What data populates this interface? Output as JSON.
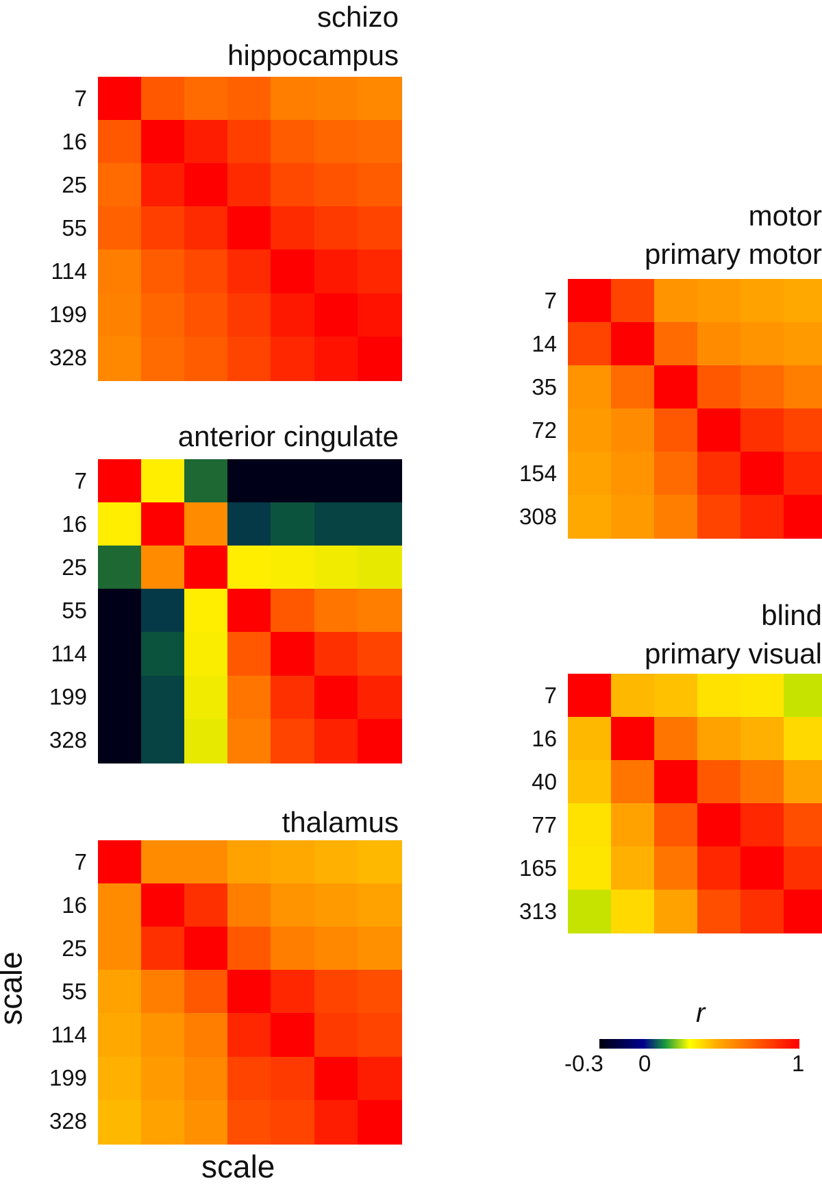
{
  "chart_data": [
    {
      "type": "heatmap",
      "title": "schizo\nhippocampus",
      "tick_labels": [
        "7",
        "16",
        "25",
        "55",
        "114",
        "199",
        "328"
      ],
      "values": [
        [
          1.0,
          0.82,
          0.78,
          0.8,
          0.74,
          0.73,
          0.71
        ],
        [
          0.82,
          1.0,
          0.94,
          0.87,
          0.81,
          0.79,
          0.78
        ],
        [
          0.78,
          0.94,
          1.0,
          0.91,
          0.85,
          0.83,
          0.81
        ],
        [
          0.8,
          0.87,
          0.91,
          1.0,
          0.91,
          0.88,
          0.86
        ],
        [
          0.74,
          0.81,
          0.85,
          0.91,
          1.0,
          0.95,
          0.92
        ],
        [
          0.73,
          0.79,
          0.83,
          0.88,
          0.95,
          1.0,
          0.96
        ],
        [
          0.71,
          0.78,
          0.81,
          0.86,
          0.92,
          0.96,
          1.0
        ]
      ]
    },
    {
      "type": "heatmap",
      "title": "anterior cingulate",
      "tick_labels": [
        "7",
        "16",
        "25",
        "55",
        "114",
        "199",
        "328"
      ],
      "values": [
        [
          1.0,
          0.45,
          0.05,
          -0.3,
          -0.3,
          -0.3,
          -0.3
        ],
        [
          0.45,
          1.0,
          0.7,
          -0.08,
          0.0,
          -0.05,
          -0.05
        ],
        [
          0.05,
          0.7,
          1.0,
          0.45,
          0.44,
          0.42,
          0.4
        ],
        [
          -0.3,
          -0.08,
          0.45,
          1.0,
          0.82,
          0.76,
          0.74
        ],
        [
          -0.3,
          0.0,
          0.44,
          0.82,
          1.0,
          0.9,
          0.86
        ],
        [
          -0.3,
          -0.05,
          0.42,
          0.76,
          0.9,
          1.0,
          0.93
        ],
        [
          -0.3,
          -0.05,
          0.4,
          0.74,
          0.86,
          0.93,
          1.0
        ]
      ]
    },
    {
      "type": "heatmap",
      "title": "thalamus",
      "tick_labels": [
        "7",
        "16",
        "25",
        "55",
        "114",
        "199",
        "328"
      ],
      "values": [
        [
          1.0,
          0.7,
          0.7,
          0.64,
          0.62,
          0.6,
          0.58
        ],
        [
          0.7,
          1.0,
          0.9,
          0.74,
          0.68,
          0.66,
          0.64
        ],
        [
          0.7,
          0.9,
          1.0,
          0.82,
          0.74,
          0.71,
          0.69
        ],
        [
          0.64,
          0.74,
          0.82,
          1.0,
          0.92,
          0.86,
          0.84
        ],
        [
          0.62,
          0.68,
          0.74,
          0.92,
          1.0,
          0.88,
          0.86
        ],
        [
          0.6,
          0.66,
          0.71,
          0.86,
          0.88,
          1.0,
          0.94
        ],
        [
          0.58,
          0.64,
          0.69,
          0.84,
          0.86,
          0.94,
          1.0
        ]
      ]
    },
    {
      "type": "heatmap",
      "title": "motor\nprimary motor",
      "tick_labels": [
        "7",
        "14",
        "35",
        "72",
        "154",
        "308"
      ],
      "values": [
        [
          1.0,
          0.86,
          0.68,
          0.66,
          0.64,
          0.62
        ],
        [
          0.86,
          1.0,
          0.78,
          0.7,
          0.68,
          0.66
        ],
        [
          0.68,
          0.78,
          1.0,
          0.82,
          0.78,
          0.74
        ],
        [
          0.66,
          0.7,
          0.82,
          1.0,
          0.9,
          0.86
        ],
        [
          0.64,
          0.68,
          0.78,
          0.9,
          1.0,
          0.92
        ],
        [
          0.62,
          0.66,
          0.74,
          0.86,
          0.92,
          1.0
        ]
      ]
    },
    {
      "type": "heatmap",
      "title": "blind\nprimary visual",
      "tick_labels": [
        "7",
        "16",
        "40",
        "77",
        "165",
        "313"
      ],
      "values": [
        [
          1.0,
          0.58,
          0.56,
          0.48,
          0.47,
          0.33
        ],
        [
          0.58,
          1.0,
          0.76,
          0.64,
          0.6,
          0.5
        ],
        [
          0.56,
          0.76,
          1.0,
          0.82,
          0.76,
          0.64
        ],
        [
          0.48,
          0.64,
          0.82,
          1.0,
          0.92,
          0.84
        ],
        [
          0.47,
          0.6,
          0.76,
          0.92,
          1.0,
          0.9
        ],
        [
          0.33,
          0.5,
          0.64,
          0.84,
          0.9,
          1.0
        ]
      ]
    }
  ],
  "axes": {
    "xlabel": "scale",
    "ylabel": "scale"
  },
  "colorbar": {
    "label": "r",
    "min": -0.3,
    "max": 1,
    "tick_labels": [
      "-0.3",
      "0",
      "1"
    ],
    "colormap": [
      "#000010",
      "#00008c",
      "#1a9a3c",
      "#ffff00",
      "#ffb000",
      "#ff6a00",
      "#ff0000"
    ]
  }
}
